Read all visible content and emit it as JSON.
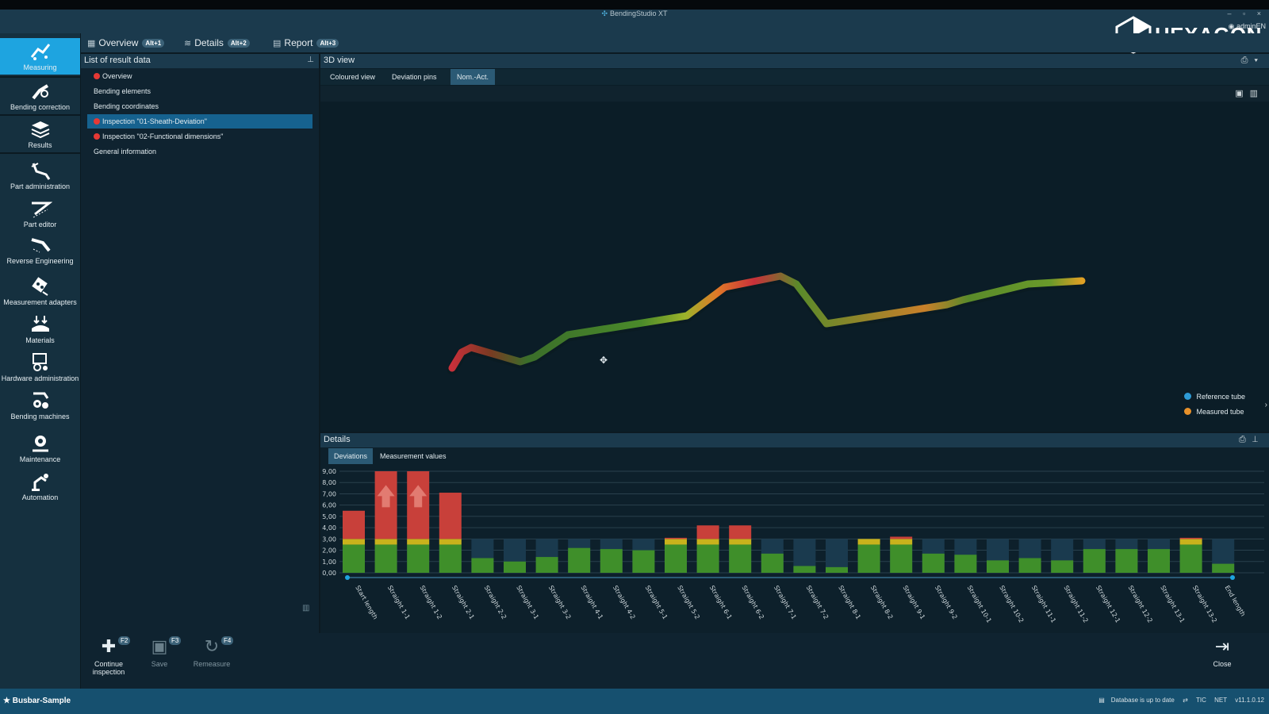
{
  "window": {
    "title": "BendingStudio XT",
    "user": "adminEN",
    "controls": "– ▫ ×"
  },
  "logo": {
    "text": "HEXAGON"
  },
  "main_tabs": [
    {
      "label": "Overview",
      "shortcut": "Alt+1"
    },
    {
      "label": "Details",
      "shortcut": "Alt+2"
    },
    {
      "label": "Report",
      "shortcut": "Alt+3"
    }
  ],
  "sidebar": {
    "items": [
      {
        "label": "Measuring",
        "icon": "measuring-icon",
        "active": true
      },
      {
        "label": "Bending correction",
        "icon": "bending-correction-icon"
      },
      {
        "label": "Results",
        "icon": "results-icon"
      },
      {
        "label": "Part administration",
        "icon": "part-administration-icon"
      },
      {
        "label": "Part editor",
        "icon": "part-editor-icon"
      },
      {
        "label": "Reverse Engineering",
        "icon": "reverse-engineering-icon"
      },
      {
        "label": "Measurement adapters",
        "icon": "measurement-adapters-icon"
      },
      {
        "label": "Materials",
        "icon": "materials-icon"
      },
      {
        "label": "Hardware administration",
        "icon": "hardware-administration-icon"
      },
      {
        "label": "Bending machines",
        "icon": "bending-machines-icon"
      },
      {
        "label": "Maintenance",
        "icon": "maintenance-icon"
      },
      {
        "label": "Automation",
        "icon": "automation-icon"
      }
    ]
  },
  "result_list": {
    "title": "List of result data",
    "items": [
      {
        "label": "Overview",
        "status": "red"
      },
      {
        "label": "Bending elements"
      },
      {
        "label": "Bending coordinates"
      },
      {
        "label": "Inspection \"01-Sheath-Deviation\"",
        "status": "red",
        "selected": true
      },
      {
        "label": "Inspection \"02-Functional dimensions\"",
        "status": "red"
      },
      {
        "label": "General information"
      }
    ]
  },
  "view3d": {
    "title": "3D view",
    "tabs": [
      "Coloured view",
      "Deviation pins",
      "Nom.-Act."
    ],
    "active_tab": 2,
    "legend": [
      {
        "label": "Reference tube",
        "color": "#2e9bd6"
      },
      {
        "label": "Measured tube",
        "color": "#e8912a"
      }
    ]
  },
  "details": {
    "title": "Details",
    "tabs": [
      "Deviations",
      "Measurement values"
    ],
    "active_tab": 0
  },
  "chart_data": {
    "type": "bar",
    "ylim": [
      0,
      9
    ],
    "yticks": [
      "0,00",
      "1,00",
      "2,00",
      "3,00",
      "4,00",
      "5,00",
      "6,00",
      "7,00",
      "8,00",
      "9,00"
    ],
    "tolerance": 3.0,
    "warning_from": 2.5,
    "categories": [
      "Start length",
      "Straight 1-1",
      "Straight 1-2",
      "Straight 2-1",
      "Straight 2-2",
      "Straight 3-1",
      "Straight 3-2",
      "Straight 4-1",
      "Straight 4-2",
      "Straight 5-1",
      "Straight 5-2",
      "Straight 6-1",
      "Straight 6-2",
      "Straight 7-1",
      "Straight 7-2",
      "Straight 8-1",
      "Straight 8-2",
      "Straight 9-1",
      "Straight 9-2",
      "Straight 10-1",
      "Straight 10-2",
      "Straight 11-1",
      "Straight 11-2",
      "Straight 12-1",
      "Straight 12-2",
      "Straight 13-1",
      "Straight 13-2",
      "End length"
    ],
    "values": [
      5.5,
      9.0,
      9.0,
      7.1,
      1.3,
      1.0,
      1.4,
      2.2,
      2.1,
      2.0,
      3.1,
      4.2,
      4.2,
      1.7,
      0.6,
      0.5,
      3.0,
      3.2,
      1.7,
      1.6,
      1.1,
      1.3,
      1.1,
      2.1,
      2.1,
      2.1,
      3.1,
      0.8
    ],
    "clipped": [
      false,
      true,
      true,
      false,
      false,
      false,
      false,
      false,
      false,
      false,
      false,
      false,
      false,
      false,
      false,
      false,
      false,
      false,
      false,
      false,
      false,
      false,
      false,
      false,
      false,
      false,
      false,
      false
    ],
    "colors": {
      "ok": "#3f8f2a",
      "warn": "#c9b21c",
      "fail": "#c8403a",
      "band": "#1a3a4e"
    }
  },
  "bottom_buttons": [
    {
      "label": "Continue inspection",
      "key": "F2",
      "enabled": true
    },
    {
      "label": "Save",
      "key": "F3",
      "enabled": false
    },
    {
      "label": "Remeasure",
      "key": "F4",
      "enabled": false
    },
    {
      "label": "Close",
      "enabled": true
    }
  ],
  "status": {
    "part": "Busbar-Sample",
    "db": "Database is up to date",
    "tic": "TIC",
    "net": "NET",
    "version": "v11.1.0.12"
  }
}
